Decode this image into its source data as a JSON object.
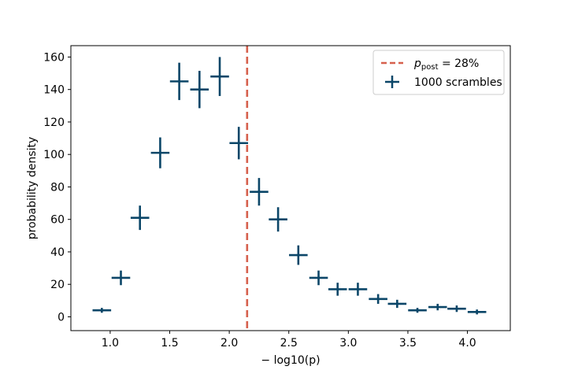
{
  "chart_data": {
    "type": "scatter",
    "xlabel": "− log10(p)",
    "ylabel": "probability density",
    "xlim": [
      0.67,
      4.36
    ],
    "ylim": [
      -8.5,
      167
    ],
    "xticks": [
      1.0,
      1.5,
      2.0,
      2.5,
      3.0,
      3.5,
      4.0
    ],
    "xtick_labels": [
      "1.0",
      "1.5",
      "2.0",
      "2.5",
      "3.0",
      "3.5",
      "4.0"
    ],
    "yticks": [
      0,
      20,
      40,
      60,
      80,
      100,
      120,
      140,
      160
    ],
    "ytick_labels": [
      "0",
      "20",
      "40",
      "60",
      "80",
      "100",
      "120",
      "140",
      "160"
    ],
    "grid": false,
    "legend_position": "top-right",
    "bin_halfwidth": 0.078,
    "series": [
      {
        "name": "1000 scrambles",
        "color": "#0b4668",
        "marker": "errorbar-cross",
        "points": [
          {
            "x": 0.93,
            "y": 4,
            "yerr": 1.5
          },
          {
            "x": 1.09,
            "y": 24,
            "yerr": 4.5
          },
          {
            "x": 1.25,
            "y": 61,
            "yerr": 7.5
          },
          {
            "x": 1.42,
            "y": 101,
            "yerr": 9.5
          },
          {
            "x": 1.58,
            "y": 145,
            "yerr": 11.5
          },
          {
            "x": 1.75,
            "y": 140,
            "yerr": 11.5
          },
          {
            "x": 1.92,
            "y": 148,
            "yerr": 12
          },
          {
            "x": 2.08,
            "y": 107,
            "yerr": 10
          },
          {
            "x": 2.25,
            "y": 77,
            "yerr": 8.5
          },
          {
            "x": 2.41,
            "y": 60,
            "yerr": 7.5
          },
          {
            "x": 2.58,
            "y": 38,
            "yerr": 6
          },
          {
            "x": 2.75,
            "y": 24,
            "yerr": 4.5
          },
          {
            "x": 2.91,
            "y": 17,
            "yerr": 4
          },
          {
            "x": 3.08,
            "y": 17,
            "yerr": 4
          },
          {
            "x": 3.25,
            "y": 11,
            "yerr": 3
          },
          {
            "x": 3.41,
            "y": 8,
            "yerr": 2.5
          },
          {
            "x": 3.58,
            "y": 4,
            "yerr": 1.5
          },
          {
            "x": 3.75,
            "y": 6,
            "yerr": 2
          },
          {
            "x": 3.91,
            "y": 5,
            "yerr": 2
          },
          {
            "x": 4.08,
            "y": 3,
            "yerr": 1.5
          }
        ]
      }
    ],
    "reference_line": {
      "name": "p_post = 28%",
      "legend_p": "p",
      "legend_sub": "post",
      "legend_rest": " = 28%",
      "x": 2.15,
      "color": "#d6604d",
      "style": "dashed"
    }
  }
}
